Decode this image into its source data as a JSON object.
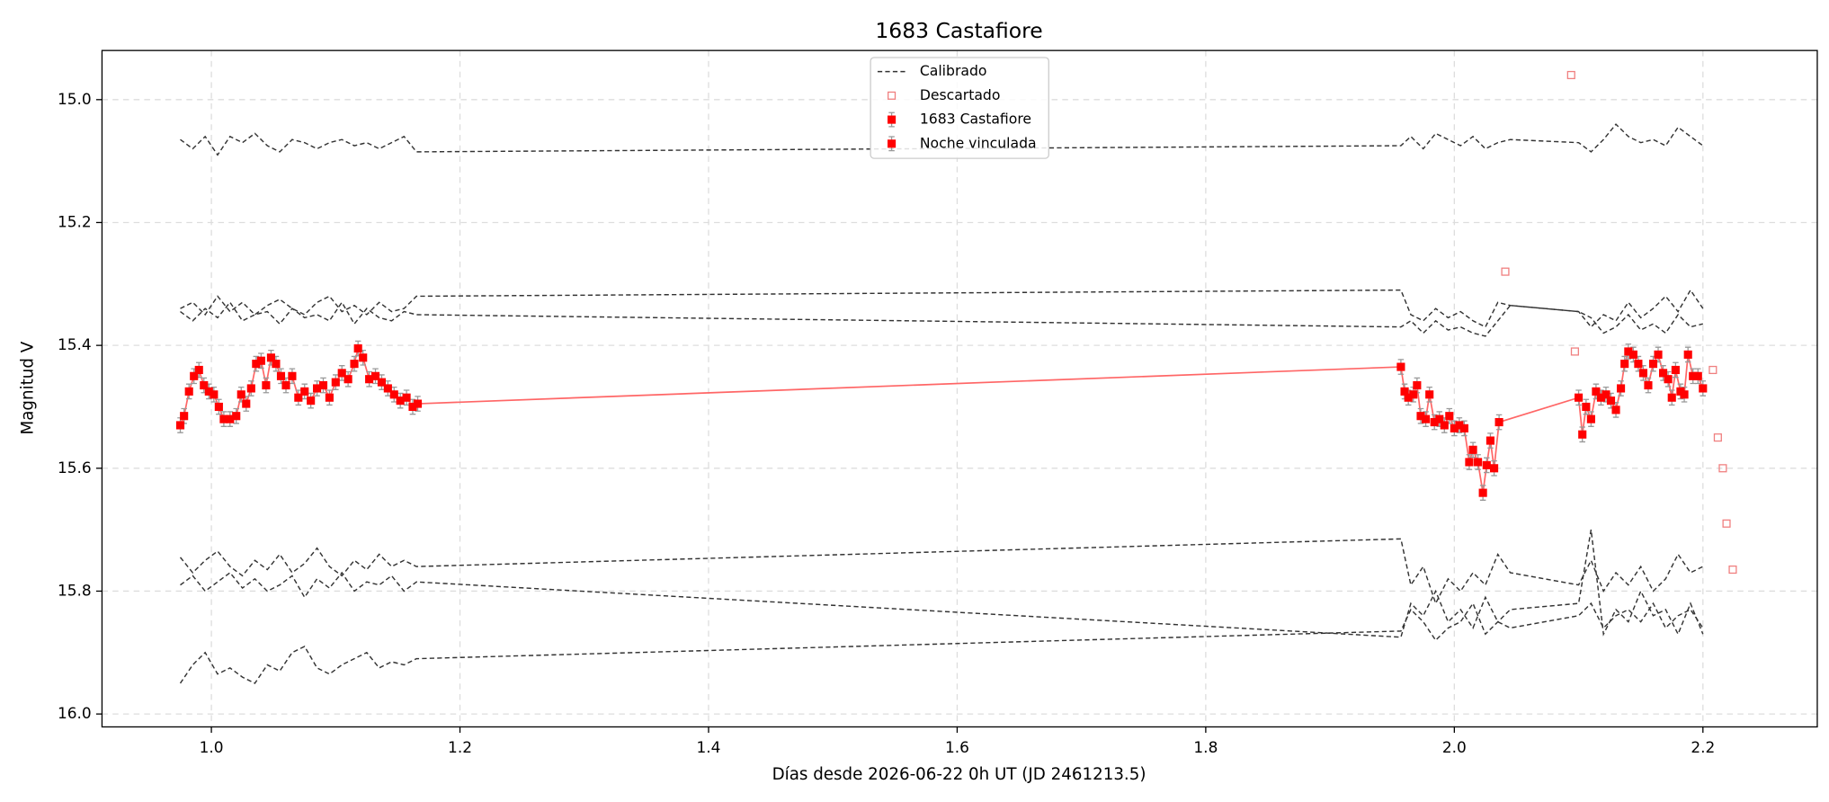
{
  "chart_data": {
    "type": "errorbar",
    "title": "1683 Castafiore",
    "xlabel": "Días desde 2026-06-22 0h UT (JD 2461213.5)",
    "ylabel": "Magnitud V",
    "xlim": [
      0.912,
      2.292
    ],
    "ylim": [
      14.92,
      16.021
    ],
    "y_inverted": true,
    "grid": true,
    "legend": "upper center",
    "xticks": [
      {
        "value": 1,
        "label": "1.0"
      },
      1.2,
      1.4,
      1.6,
      1.8,
      {
        "value": 2,
        "label": "2.0"
      },
      2.2
    ],
    "yticks": [
      {
        "value": 15,
        "label": "15.0"
      },
      15.2,
      15.4,
      15.6,
      15.8,
      {
        "value": 16,
        "label": "16.0"
      }
    ],
    "series": [
      {
        "name": "Calibrado",
        "kind": "dashed-lines",
        "color": "#333333",
        "x": [
          0.975,
          0.985,
          0.995,
          1.005,
          1.015,
          1.025,
          1.035,
          1.045,
          1.055,
          1.065,
          1.075,
          1.085,
          1.095,
          1.105,
          1.115,
          1.125,
          1.135,
          1.145,
          1.155,
          1.165,
          1.957,
          1.965,
          1.975,
          1.985,
          1.995,
          2.005,
          2.015,
          2.025,
          2.035,
          2.045,
          2.1,
          2.11,
          2.12,
          2.13,
          2.14,
          2.15,
          2.16,
          2.17,
          2.18,
          2.19,
          2.2
        ],
        "lines": [
          [
            15.065,
            15.08,
            15.06,
            15.09,
            15.06,
            15.07,
            15.055,
            15.075,
            15.085,
            15.065,
            15.07,
            15.08,
            15.07,
            15.065,
            15.075,
            15.07,
            15.08,
            15.07,
            15.06,
            15.085,
            15.075,
            15.06,
            15.08,
            15.055,
            15.065,
            15.075,
            15.06,
            15.08,
            15.07,
            15.065,
            15.07,
            15.085,
            15.065,
            15.04,
            15.06,
            15.07,
            15.065,
            15.075,
            15.045,
            15.06,
            15.075
          ],
          [
            15.34,
            15.33,
            15.35,
            15.32,
            15.345,
            15.33,
            15.35,
            15.335,
            15.325,
            15.34,
            15.35,
            15.33,
            15.32,
            15.345,
            15.335,
            15.35,
            15.33,
            15.345,
            15.34,
            15.32,
            15.31,
            15.35,
            15.36,
            15.34,
            15.355,
            15.345,
            15.36,
            15.37,
            15.33,
            15.335,
            15.345,
            15.37,
            15.35,
            15.36,
            15.33,
            15.355,
            15.34,
            15.32,
            15.345,
            15.31,
            15.34
          ],
          [
            15.345,
            15.36,
            15.34,
            15.355,
            15.33,
            15.36,
            15.35,
            15.345,
            15.365,
            15.34,
            15.355,
            15.35,
            15.36,
            15.33,
            15.365,
            15.34,
            15.355,
            15.36,
            15.345,
            15.35,
            15.37,
            15.36,
            15.38,
            15.36,
            15.375,
            15.37,
            15.38,
            15.385,
            15.36,
            15.335,
            15.345,
            15.355,
            15.38,
            15.37,
            15.35,
            15.375,
            15.365,
            15.38,
            15.35,
            15.37,
            15.365
          ],
          [
            15.745,
            15.77,
            15.75,
            15.735,
            15.76,
            15.775,
            15.75,
            15.765,
            15.74,
            15.77,
            15.755,
            15.73,
            15.76,
            15.775,
            15.75,
            15.765,
            15.74,
            15.76,
            15.75,
            15.76,
            15.715,
            15.79,
            15.76,
            15.82,
            15.78,
            15.8,
            15.77,
            15.79,
            15.74,
            15.77,
            15.79,
            15.75,
            15.8,
            15.77,
            15.79,
            15.76,
            15.8,
            15.78,
            15.74,
            15.77,
            15.76
          ],
          [
            15.79,
            15.775,
            15.8,
            15.785,
            15.77,
            15.795,
            15.78,
            15.8,
            15.79,
            15.775,
            15.81,
            15.78,
            15.795,
            15.77,
            15.8,
            15.785,
            15.79,
            15.775,
            15.8,
            15.785,
            15.875,
            15.82,
            15.84,
            15.8,
            15.85,
            15.83,
            15.86,
            15.81,
            15.85,
            15.86,
            15.84,
            15.82,
            15.86,
            15.84,
            15.83,
            15.85,
            15.82,
            15.86,
            15.84,
            15.83,
            15.86
          ],
          [
            15.95,
            15.92,
            15.9,
            15.935,
            15.925,
            15.94,
            15.95,
            15.92,
            15.93,
            15.9,
            15.89,
            15.925,
            15.935,
            15.92,
            15.91,
            15.9,
            15.925,
            15.915,
            15.92,
            15.91,
            15.865,
            15.83,
            15.85,
            15.88,
            15.86,
            15.85,
            15.82,
            15.87,
            15.85,
            15.83,
            15.82,
            15.7,
            15.87,
            15.83,
            15.85,
            15.8,
            15.84,
            15.83,
            15.87,
            15.82,
            15.87
          ]
        ]
      },
      {
        "name": "Descartado",
        "kind": "open-squares",
        "color": "#f08080",
        "x": [
          2.094,
          2.041,
          2.097,
          2.208,
          2.212,
          2.216,
          2.219,
          2.224
        ],
        "values": [
          14.96,
          15.28,
          15.41,
          15.44,
          15.55,
          15.6,
          15.69,
          15.765
        ]
      },
      {
        "name": "1683 Castafiore",
        "kind": "errorbar",
        "color": "#ff0000",
        "line_color": "#ff6666",
        "yerr": 0.012,
        "x": [
          0.975,
          0.978,
          0.982,
          0.986,
          0.99,
          0.994,
          0.998,
          1.002,
          1.006,
          1.01,
          1.015,
          1.02,
          1.024,
          1.028,
          1.032,
          1.036,
          1.04,
          1.044,
          1.048,
          1.052,
          1.056,
          1.06,
          1.065,
          1.07,
          1.075,
          1.08,
          1.085,
          1.09,
          1.095,
          1.1,
          1.105,
          1.11,
          1.115,
          1.118,
          1.122,
          1.127,
          1.132,
          1.137,
          1.142,
          1.147,
          1.152,
          1.157,
          1.162,
          1.166
        ],
        "values": [
          15.53,
          15.515,
          15.475,
          15.45,
          15.44,
          15.465,
          15.475,
          15.48,
          15.5,
          15.52,
          15.52,
          15.515,
          15.48,
          15.495,
          15.47,
          15.43,
          15.425,
          15.465,
          15.42,
          15.43,
          15.45,
          15.465,
          15.45,
          15.485,
          15.475,
          15.49,
          15.47,
          15.465,
          15.485,
          15.46,
          15.445,
          15.455,
          15.43,
          15.405,
          15.42,
          15.455,
          15.45,
          15.46,
          15.47,
          15.48,
          15.49,
          15.485,
          15.5,
          15.495
        ]
      },
      {
        "name": "Noche vinculada",
        "kind": "errorbar",
        "color": "#ff0000",
        "line_color": "#ff6666",
        "yerr": 0.012,
        "x": [
          1.957,
          1.96,
          1.963,
          1.967,
          1.97,
          1.973,
          1.977,
          1.98,
          1.984,
          1.988,
          1.992,
          1.996,
          2.0,
          2.004,
          2.008,
          2.012,
          2.015,
          2.019,
          2.023,
          2.026,
          2.029,
          2.032,
          2.036,
          2.1,
          2.103,
          2.106,
          2.11,
          2.114,
          2.118,
          2.122,
          2.126,
          2.13,
          2.134,
          2.137,
          2.14,
          2.144,
          2.148,
          2.152,
          2.156,
          2.16,
          2.164,
          2.168,
          2.172,
          2.175,
          2.178,
          2.182,
          2.185,
          2.188,
          2.192,
          2.196,
          2.2
        ],
        "values": [
          15.435,
          15.475,
          15.485,
          15.48,
          15.465,
          15.515,
          15.52,
          15.48,
          15.525,
          15.52,
          15.53,
          15.515,
          15.535,
          15.53,
          15.535,
          15.59,
          15.57,
          15.59,
          15.64,
          15.595,
          15.555,
          15.6,
          15.525,
          15.485,
          15.545,
          15.5,
          15.52,
          15.475,
          15.485,
          15.48,
          15.49,
          15.505,
          15.47,
          15.43,
          15.41,
          15.415,
          15.43,
          15.445,
          15.465,
          15.43,
          15.415,
          15.445,
          15.455,
          15.485,
          15.44,
          15.475,
          15.48,
          15.415,
          15.45,
          15.45,
          15.47
        ]
      }
    ]
  }
}
